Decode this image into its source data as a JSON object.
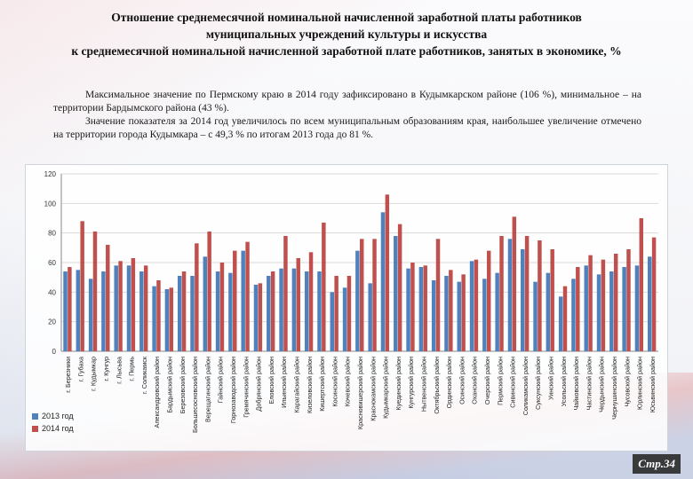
{
  "title_lines": [
    "Отношение среднемесячной номинальной начисленной заработной платы работников",
    "муниципальных учреждений культуры и искусства",
    "к среднемесячной номинальной начисленной заработной плате работников, занятых в экономике, %"
  ],
  "paragraphs": [
    "Максимальное значение по Пермскому краю в 2014 году зафиксировано в Кудымкарском районе (106 %), минимальное – на территории Бардымского района (43 %).",
    "Значение показателя за 2014 год увеличилось по всем муниципальным образованиям края, наибольшее увеличение отмечено на территории города Кудымкара – с 49,3 % по итогам 2013 года до 81 %."
  ],
  "page_number": "Стр.34",
  "colors": {
    "series_2013": "#4f81bd",
    "series_2014": "#c0504d"
  },
  "chart_data": {
    "type": "bar",
    "ylim": [
      0,
      120
    ],
    "yticks": [
      0,
      20,
      40,
      60,
      80,
      100,
      120
    ],
    "grid": true,
    "legend_position": "bottom-left",
    "categories": [
      "г. Березники",
      "г. Губаха",
      "г. Кудымкар",
      "г. Кунгур",
      "г. Лысьва",
      "г. Пермь",
      "г. Соликамск",
      "Александровский район",
      "Бардымский район",
      "Березовский район",
      "Большесосновский район",
      "Верещагинский район",
      "Гайнский район",
      "Горнозаводский район",
      "Гремячинский район",
      "Добрянский район",
      "Еловский район",
      "Ильинский район",
      "Карагайский район",
      "Кизеловский район",
      "Кишертский район",
      "Косинский район",
      "Кочевский район",
      "Красновишерский район",
      "Краснокамский район",
      "Кудымкарский район",
      "Куединский район",
      "Кунгурский район",
      "Нытвенский район",
      "Октябрьский район",
      "Ординский район",
      "Осинский район",
      "Оханский район",
      "Очерский район",
      "Пермский район",
      "Сивинский район",
      "Соликамский район",
      "Суксунский район",
      "Уинский район",
      "Усольский район",
      "Чайковский район",
      "Частинский район",
      "Чердынский район",
      "Чернушинский район",
      "Чусовской район",
      "Юрлинский район",
      "Юсьвинский район"
    ],
    "series": [
      {
        "name": "2013 год",
        "values": [
          54,
          55,
          49,
          54,
          58,
          58,
          54,
          44,
          42,
          51,
          51,
          64,
          54,
          53,
          68,
          45,
          51,
          56,
          56,
          54,
          54,
          40,
          43,
          68,
          46,
          94,
          78,
          56,
          57,
          48,
          51,
          47,
          61,
          49,
          53,
          76,
          69,
          47,
          53,
          37,
          49,
          58,
          52,
          54,
          57,
          58,
          64
        ]
      },
      {
        "name": "2014 год",
        "values": [
          57,
          88,
          81,
          72,
          61,
          63,
          58,
          48,
          43,
          54,
          73,
          81,
          60,
          68,
          74,
          46,
          54,
          78,
          63,
          67,
          87,
          51,
          51,
          76,
          76,
          106,
          86,
          60,
          58,
          76,
          55,
          52,
          62,
          68,
          78,
          91,
          78,
          75,
          69,
          44,
          57,
          65,
          62,
          66,
          69,
          90,
          77
        ]
      }
    ]
  }
}
